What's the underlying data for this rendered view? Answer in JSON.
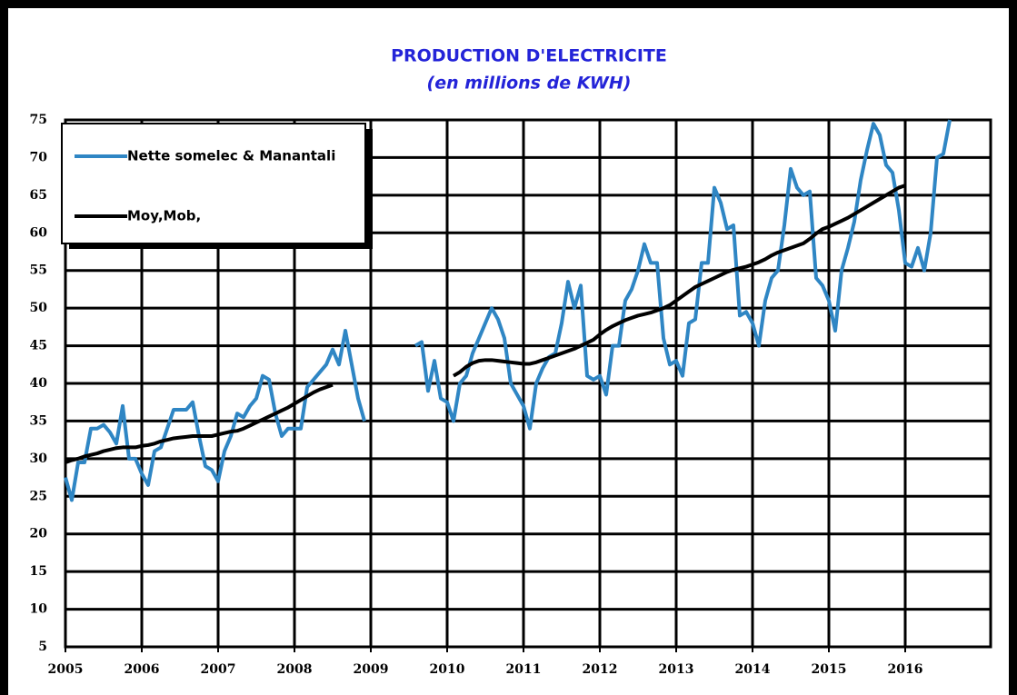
{
  "chart_data": {
    "type": "line",
    "title": "PRODUCTION D'ELECTRICITE",
    "subtitle": "(en millions de KWH)",
    "categories": [
      "2005",
      null,
      null,
      null,
      null,
      null,
      null,
      null,
      null,
      null,
      null,
      null,
      "2006",
      null,
      null,
      null,
      null,
      null,
      null,
      null,
      null,
      null,
      null,
      null,
      "2007",
      null,
      null,
      null,
      null,
      null,
      null,
      null,
      null,
      null,
      null,
      null,
      "2008",
      null,
      null,
      null,
      null,
      null,
      null,
      null,
      null,
      null,
      null,
      null,
      "2009",
      null,
      null,
      null,
      null,
      null,
      null,
      null,
      null,
      null,
      null,
      null,
      "2010",
      null,
      null,
      null,
      null,
      null,
      null,
      null,
      null,
      null,
      null,
      null,
      "2011",
      null,
      null,
      null,
      null,
      null,
      null,
      null,
      null,
      null,
      null,
      null,
      "2012",
      null,
      null,
      null,
      null,
      null,
      null,
      null,
      null,
      null,
      null,
      null,
      "2013",
      null,
      null,
      null,
      null,
      null,
      null,
      null,
      null,
      null,
      null,
      null,
      "2014",
      null,
      null,
      null,
      null,
      null,
      null,
      null,
      null,
      null,
      null,
      null,
      "2015",
      null,
      null,
      null,
      null,
      null,
      null,
      null,
      null,
      null,
      null,
      null,
      "2016",
      null,
      null,
      null,
      null,
      null,
      null,
      null,
      null,
      null,
      null,
      null
    ],
    "series": [
      {
        "name": "Nette somelec & Manantali",
        "color": "#2f86c4",
        "values": [
          27.5,
          24.5,
          29.5,
          29.5,
          34,
          34,
          34.5,
          33.5,
          32,
          37,
          30,
          30,
          28,
          26.5,
          31,
          31.5,
          34,
          36.5,
          36.5,
          36.5,
          37.5,
          33,
          29,
          28.5,
          27,
          31,
          33,
          36,
          35.5,
          37,
          38,
          41,
          40.5,
          36,
          33,
          34,
          34,
          34,
          39.5,
          40.5,
          41.5,
          42.5,
          44.5,
          42.5,
          47,
          42.5,
          38,
          35,
          null,
          null,
          null,
          null,
          null,
          null,
          null,
          45,
          45.5,
          39,
          43,
          38,
          37.5,
          35,
          40,
          41,
          44,
          46,
          48,
          50,
          48.5,
          46,
          40,
          38.5,
          37,
          34,
          40,
          42,
          43.5,
          44,
          48,
          53.5,
          50,
          53,
          41,
          40.5,
          41,
          38.5,
          45,
          45,
          51,
          52.5,
          55,
          58.5,
          56,
          56,
          46,
          42.5,
          43,
          41,
          48,
          48.5,
          56,
          56,
          66,
          64,
          60.5,
          61,
          49,
          49.5,
          48,
          45,
          51,
          54,
          55,
          61,
          68.5,
          66,
          65,
          65.5,
          54,
          53,
          51,
          47,
          55,
          58,
          61.5,
          67,
          71,
          74.5,
          73,
          69,
          68,
          63,
          56,
          55.5,
          58,
          55,
          60,
          70,
          70.5,
          75,
          null,
          null,
          null,
          null
        ]
      },
      {
        "name": "Moy,Mob,",
        "color": "#000000",
        "values": [
          29.5,
          29.8,
          30,
          30.3,
          30.5,
          30.7,
          31,
          31.2,
          31.4,
          31.5,
          31.5,
          31.5,
          31.7,
          31.8,
          32,
          32.3,
          32.5,
          32.7,
          32.8,
          32.9,
          33,
          33,
          33,
          33,
          33.2,
          33.4,
          33.6,
          33.7,
          34,
          34.4,
          34.8,
          35.2,
          35.6,
          36,
          36.4,
          36.8,
          37.3,
          37.8,
          38.3,
          38.8,
          39.2,
          39.5,
          39.8,
          null,
          null,
          null,
          null,
          null,
          null,
          null,
          null,
          null,
          null,
          null,
          null,
          null,
          null,
          null,
          null,
          null,
          null,
          41,
          41.5,
          42.2,
          42.7,
          43,
          43.1,
          43.1,
          43,
          42.9,
          42.8,
          42.7,
          42.6,
          42.6,
          42.8,
          43.1,
          43.4,
          43.7,
          44,
          44.3,
          44.6,
          45,
          45.4,
          45.8,
          46.5,
          47.1,
          47.6,
          48,
          48.4,
          48.7,
          49,
          49.2,
          49.4,
          49.7,
          50,
          50.4,
          51,
          51.6,
          52.2,
          52.8,
          53.2,
          53.6,
          54,
          54.4,
          54.8,
          55.1,
          55.3,
          55.5,
          55.8,
          56.1,
          56.5,
          57,
          57.4,
          57.7,
          58,
          58.3,
          58.6,
          59.2,
          59.9,
          60.5,
          60.8,
          61.2,
          61.6,
          62,
          62.5,
          63,
          63.5,
          64,
          64.5,
          65,
          65.5,
          66,
          66.3,
          null,
          null,
          null,
          null,
          null,
          null,
          null,
          null,
          null,
          null,
          null
        ]
      }
    ],
    "ylim": [
      5,
      75
    ],
    "yticks": [
      5,
      10,
      15,
      20,
      25,
      30,
      35,
      40,
      45,
      50,
      55,
      60,
      65,
      70,
      75
    ],
    "grid": true,
    "legend": "upper left"
  }
}
